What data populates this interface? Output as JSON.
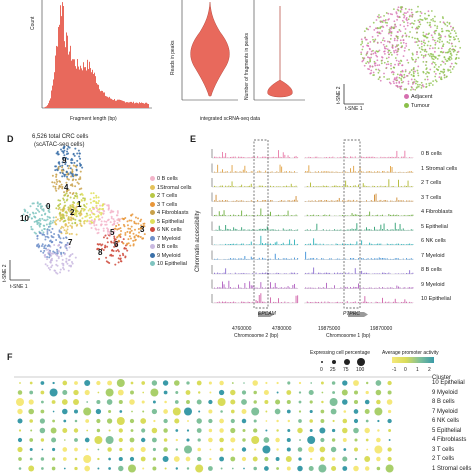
{
  "panel_a": {
    "ylabel": "Count",
    "xlabel": "Fragment length (bp)",
    "color": "#e8695c"
  },
  "panel_b": {
    "ylabel_left": "Reads in peaks",
    "ylabel_right": "Number of fragments in peaks",
    "xlabel": "integrated scRNA-seq data",
    "color": "#e8695c"
  },
  "panel_c": {
    "xlabel": "t-SNE 1",
    "ylabel": "t-SNE 2",
    "legend": [
      {
        "label": "Adjacent",
        "color": "#d66fb0"
      },
      {
        "label": "Tumour",
        "color": "#8bbf4a"
      }
    ]
  },
  "panel_d": {
    "letter": "D",
    "title_line1": "6,526 total CRC cells",
    "title_line2": "(scATAC-seq cells)",
    "xlabel": "t-SNE 1",
    "ylabel": "t-SNE 2",
    "legend": [
      {
        "label": "0 B cells",
        "color": "#f3b4c9"
      },
      {
        "label": "1Stromal cells",
        "color": "#e4c25a"
      },
      {
        "label": "2 T cells",
        "color": "#b8c746"
      },
      {
        "label": "3 T cells",
        "color": "#e8963a"
      },
      {
        "label": "4 Fibroblasts",
        "color": "#c9a14a"
      },
      {
        "label": "5 Epithelial",
        "color": "#e0e05a"
      },
      {
        "label": "6 NK cells",
        "color": "#cf4b3d"
      },
      {
        "label": "7 Myeloid",
        "color": "#6f8fc9"
      },
      {
        "label": "8 B cells",
        "color": "#c9b9e0"
      },
      {
        "label": "9 Myeloid",
        "color": "#3a6fa8"
      },
      {
        "label": "10 Epithelial",
        "color": "#7fc4c0"
      }
    ],
    "cluster_labels": [
      {
        "text": "9"
      },
      {
        "text": "4"
      },
      {
        "text": "2"
      },
      {
        "text": "1"
      },
      {
        "text": "10"
      },
      {
        "text": "0"
      },
      {
        "text": "3"
      },
      {
        "text": "5"
      },
      {
        "text": "7"
      },
      {
        "text": "8"
      },
      {
        "text": "6"
      }
    ]
  },
  "panel_e": {
    "letter": "E",
    "ylabel": "Chromatin accessibility",
    "gene_left": "EPCAM",
    "gene_right": "PTPRC",
    "chrom_left": "Chromosome 2 (bp)",
    "chrom_right": "Chromosome 1 (bp)",
    "ticks_left": [
      "4760000",
      "4780000"
    ],
    "ticks_right": [
      "19875000",
      "19870000"
    ],
    "tracks": [
      {
        "label": "0 B cells",
        "color": "#e87aa8"
      },
      {
        "label": "1 Stromal cells",
        "color": "#e0a040"
      },
      {
        "label": "2 T cells",
        "color": "#b0b830"
      },
      {
        "label": "3 T cells",
        "color": "#d08a30"
      },
      {
        "label": "4 Fibroblasts",
        "color": "#6cae3c"
      },
      {
        "label": "5 Epithelial",
        "color": "#2fa073"
      },
      {
        "label": "6 NK cells",
        "color": "#2bb0b8"
      },
      {
        "label": "7 Myeloid",
        "color": "#3a8fd8"
      },
      {
        "label": "8 B cells",
        "color": "#8a6ed0"
      },
      {
        "label": "9 Myeloid",
        "color": "#b05ec0"
      },
      {
        "label": "10 Epithelial",
        "color": "#d060a8"
      }
    ]
  },
  "panel_f": {
    "letter": "F",
    "size_legend_title": "Expressing cell percentage",
    "size_ticks": [
      "0",
      "25",
      "75",
      "100"
    ],
    "color_legend_title": "Average promoter activity",
    "color_ticks": [
      "-1",
      "0",
      "1",
      "2"
    ],
    "cluster_title": "Cluster",
    "rows": [
      "10 Epithelial",
      "9 Myeloid",
      "8 B cells",
      "7 Myeloid",
      "6 NK cells",
      "5 Epithelial",
      "4 Fibroblasts",
      "3 T cells",
      "2 T cells",
      "1 Stromal cells"
    ]
  }
}
